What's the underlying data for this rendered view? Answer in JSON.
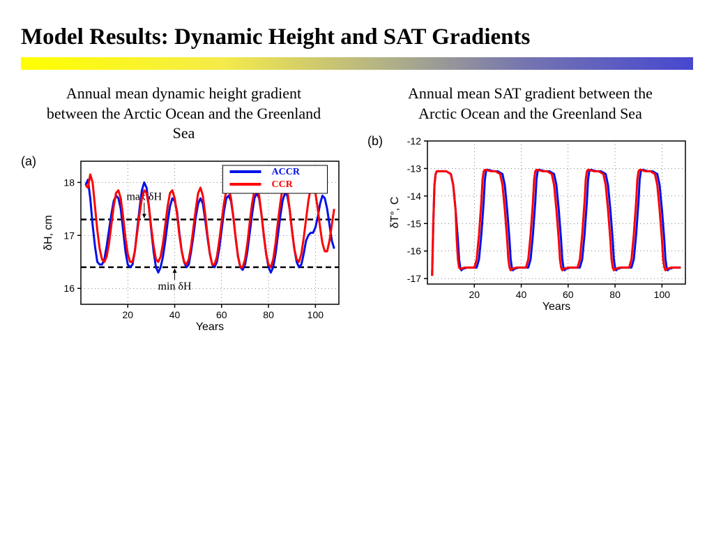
{
  "title": "Model Results: Dynamic Height and SAT Gradients",
  "gradient_bar_colors": [
    "#ffff00",
    "#4747d0"
  ],
  "panel_a": {
    "label": "(a)",
    "subtitle": "Annual mean dynamic height gradient between the Arctic Ocean and the Greenland Sea",
    "type": "line",
    "xlabel": "Years",
    "ylabel": "δH, cm",
    "xlim": [
      0,
      110
    ],
    "ylim": [
      15.7,
      18.4
    ],
    "xticks": [
      20,
      40,
      60,
      80,
      100
    ],
    "yticks": [
      16,
      17,
      18
    ],
    "ref_lines": [
      {
        "y": 17.3,
        "label": "max δH",
        "label_x": 27
      },
      {
        "y": 16.4,
        "label": "min δH",
        "label_x": 40
      }
    ],
    "legend": {
      "items": [
        {
          "label": "ACCR",
          "color": "#0010e8"
        },
        {
          "label": "CCR",
          "color": "#ff0000"
        }
      ]
    },
    "series": [
      {
        "name": "ACCR",
        "color": "#0010e8",
        "width": 3,
        "x": [
          2,
          3,
          4,
          5,
          6,
          7,
          8,
          9,
          10,
          11,
          12,
          13,
          14,
          15,
          16,
          17,
          18,
          19,
          20,
          21,
          22,
          23,
          24,
          25,
          26,
          27,
          28,
          29,
          30,
          31,
          32,
          33,
          34,
          35,
          36,
          37,
          38,
          39,
          40,
          41,
          42,
          43,
          44,
          45,
          46,
          47,
          48,
          49,
          50,
          51,
          52,
          53,
          54,
          55,
          56,
          57,
          58,
          59,
          60,
          61,
          62,
          63,
          64,
          65,
          66,
          67,
          68,
          69,
          70,
          71,
          72,
          73,
          74,
          75,
          76,
          77,
          78,
          79,
          80,
          81,
          82,
          83,
          84,
          85,
          86,
          87,
          88,
          89,
          90,
          91,
          92,
          93,
          94,
          95,
          96,
          97,
          98,
          99,
          100,
          101,
          102,
          103,
          104,
          105,
          106,
          107,
          108
        ],
        "y": [
          17.95,
          18.05,
          17.7,
          17.2,
          16.8,
          16.5,
          16.45,
          16.45,
          16.55,
          16.8,
          17.1,
          17.4,
          17.65,
          17.75,
          17.7,
          17.5,
          17.1,
          16.7,
          16.45,
          16.4,
          16.45,
          16.7,
          17.1,
          17.5,
          17.85,
          18.0,
          17.9,
          17.55,
          17.1,
          16.7,
          16.4,
          16.3,
          16.4,
          16.6,
          16.9,
          17.25,
          17.55,
          17.7,
          17.65,
          17.45,
          17.05,
          16.7,
          16.5,
          16.4,
          16.45,
          16.7,
          17.0,
          17.35,
          17.6,
          17.7,
          17.6,
          17.3,
          16.95,
          16.65,
          16.45,
          16.4,
          16.5,
          16.75,
          17.1,
          17.45,
          17.7,
          17.75,
          17.65,
          17.35,
          16.95,
          16.6,
          16.4,
          16.35,
          16.45,
          16.7,
          17.05,
          17.4,
          17.7,
          17.8,
          17.7,
          17.4,
          17.0,
          16.65,
          16.4,
          16.3,
          16.4,
          16.65,
          17.0,
          17.35,
          17.65,
          17.8,
          17.75,
          17.5,
          17.1,
          16.75,
          16.5,
          16.4,
          16.45,
          16.65,
          16.9,
          17.0,
          17.05,
          17.05,
          17.15,
          17.35,
          17.6,
          17.75,
          17.7,
          17.5,
          17.2,
          16.9,
          16.75
        ]
      },
      {
        "name": "CCR",
        "color": "#ff0000",
        "width": 3,
        "x": [
          2,
          3,
          4,
          5,
          6,
          7,
          8,
          9,
          10,
          11,
          12,
          13,
          14,
          15,
          16,
          17,
          18,
          19,
          20,
          21,
          22,
          23,
          24,
          25,
          26,
          27,
          28,
          29,
          30,
          31,
          32,
          33,
          34,
          35,
          36,
          37,
          38,
          39,
          40,
          41,
          42,
          43,
          44,
          45,
          46,
          47,
          48,
          49,
          50,
          51,
          52,
          53,
          54,
          55,
          56,
          57,
          58,
          59,
          60,
          61,
          62,
          63,
          64,
          65,
          66,
          67,
          68,
          69,
          70,
          71,
          72,
          73,
          74,
          75,
          76,
          77,
          78,
          79,
          80,
          81,
          82,
          83,
          84,
          85,
          86,
          87,
          88,
          89,
          90,
          91,
          92,
          93,
          94,
          95,
          96,
          97,
          98,
          99,
          100,
          101,
          102,
          103,
          104,
          105,
          106,
          107,
          108
        ],
        "y": [
          17.95,
          17.9,
          18.15,
          18.0,
          17.55,
          17.1,
          16.75,
          16.55,
          16.5,
          16.6,
          16.85,
          17.2,
          17.55,
          17.8,
          17.85,
          17.7,
          17.35,
          16.95,
          16.65,
          16.5,
          16.5,
          16.7,
          17.05,
          17.4,
          17.7,
          17.85,
          17.8,
          17.55,
          17.15,
          16.8,
          16.55,
          16.5,
          16.6,
          16.85,
          17.2,
          17.55,
          17.8,
          17.85,
          17.7,
          17.4,
          17.0,
          16.7,
          16.5,
          16.45,
          16.55,
          16.8,
          17.15,
          17.5,
          17.8,
          17.9,
          17.75,
          17.4,
          17.0,
          16.65,
          16.45,
          16.45,
          16.6,
          16.9,
          17.25,
          17.6,
          17.85,
          17.9,
          17.7,
          17.35,
          16.95,
          16.6,
          16.4,
          16.4,
          16.55,
          16.85,
          17.25,
          17.6,
          17.85,
          17.9,
          17.75,
          17.4,
          17.0,
          16.65,
          16.45,
          16.4,
          16.55,
          16.85,
          17.25,
          17.6,
          17.9,
          18.0,
          17.85,
          17.5,
          17.1,
          16.75,
          16.55,
          16.5,
          16.65,
          16.95,
          17.3,
          17.65,
          17.9,
          17.95,
          17.8,
          17.5,
          17.15,
          16.85,
          16.7,
          16.7,
          16.9,
          17.2,
          17.5
        ]
      }
    ],
    "label_fontsize": 16,
    "tick_fontsize": 14,
    "line_width": 3,
    "background_color": "#ffffff",
    "border_color": "#000000",
    "grid_style": "dotted"
  },
  "panel_b": {
    "label": "(b)",
    "subtitle": "Annual mean SAT gradient between the Arctic Ocean and the Greenland Sea",
    "type": "line",
    "xlabel": "Years",
    "ylabel": "δT°, C",
    "xlim": [
      0,
      110
    ],
    "ylim": [
      -17.2,
      -12
    ],
    "xticks": [
      20,
      40,
      60,
      80,
      100
    ],
    "yticks": [
      -17,
      -16,
      -15,
      -14,
      -13,
      -12
    ],
    "series": [
      {
        "name": "ACCR",
        "color": "#0010e8",
        "width": 3,
        "x": [
          2,
          2.5,
          3,
          3.5,
          4,
          6,
          8,
          10,
          11,
          12,
          13,
          13.5,
          14,
          14.5,
          15,
          17,
          19,
          21,
          22,
          23,
          24,
          24.5,
          25,
          25.5,
          26,
          28,
          30,
          32,
          33,
          34,
          35,
          35.5,
          36,
          36.5,
          37,
          39,
          41,
          43,
          44,
          45,
          46,
          46.5,
          47,
          47.5,
          48,
          50,
          52,
          54,
          55,
          56,
          57,
          57.5,
          58,
          58.5,
          59,
          61,
          63,
          65,
          66,
          67,
          68,
          68.5,
          69,
          69.5,
          70,
          72,
          74,
          76,
          77,
          78,
          79,
          79.5,
          80,
          80.5,
          81,
          83,
          85,
          87,
          88,
          89,
          90,
          90.5,
          91,
          91.5,
          92,
          94,
          96,
          98,
          99,
          100,
          101,
          101.5,
          102,
          102.5,
          103,
          105,
          107,
          108
        ],
        "y": [
          -16.9,
          -15.0,
          -13.6,
          -13.2,
          -13.1,
          -13.1,
          -13.1,
          -13.2,
          -13.6,
          -14.5,
          -15.6,
          -16.3,
          -16.6,
          -16.7,
          -16.65,
          -16.6,
          -16.6,
          -16.6,
          -16.3,
          -15.4,
          -14.2,
          -13.4,
          -13.1,
          -13.05,
          -13.05,
          -13.1,
          -13.1,
          -13.2,
          -13.6,
          -14.5,
          -15.6,
          -16.3,
          -16.6,
          -16.7,
          -16.65,
          -16.6,
          -16.6,
          -16.6,
          -16.3,
          -15.4,
          -14.2,
          -13.4,
          -13.1,
          -13.05,
          -13.05,
          -13.1,
          -13.1,
          -13.2,
          -13.6,
          -14.5,
          -15.6,
          -16.3,
          -16.6,
          -16.7,
          -16.65,
          -16.6,
          -16.6,
          -16.6,
          -16.3,
          -15.4,
          -14.2,
          -13.4,
          -13.1,
          -13.05,
          -13.05,
          -13.1,
          -13.1,
          -13.2,
          -13.6,
          -14.5,
          -15.6,
          -16.3,
          -16.6,
          -16.7,
          -16.65,
          -16.6,
          -16.6,
          -16.6,
          -16.3,
          -15.4,
          -14.2,
          -13.4,
          -13.1,
          -13.05,
          -13.05,
          -13.1,
          -13.1,
          -13.2,
          -13.6,
          -14.5,
          -15.6,
          -16.3,
          -16.6,
          -16.7,
          -16.65,
          -16.6,
          -16.6,
          -16.6
        ]
      },
      {
        "name": "CCR",
        "color": "#ff0000",
        "width": 3,
        "x": [
          2,
          2.5,
          3,
          3.5,
          4,
          6,
          8,
          10,
          11,
          12,
          12.5,
          13,
          13.5,
          14,
          16,
          18,
          20,
          21,
          22,
          23,
          23.5,
          24,
          24.5,
          25,
          27,
          29,
          31,
          32,
          33,
          34,
          34.5,
          35,
          35.5,
          36,
          38,
          40,
          42,
          43,
          44,
          45,
          45.5,
          46,
          46.5,
          47,
          49,
          51,
          53,
          54,
          55,
          56,
          56.5,
          57,
          57.5,
          58,
          60,
          62,
          64,
          65,
          66,
          67,
          67.5,
          68,
          68.5,
          69,
          71,
          73,
          75,
          76,
          77,
          78,
          78.5,
          79,
          79.5,
          80,
          82,
          84,
          86,
          87,
          88,
          89,
          89.5,
          90,
          90.5,
          91,
          93,
          95,
          97,
          98,
          99,
          100,
          100.5,
          101,
          101.5,
          102,
          104,
          106,
          108
        ],
        "y": [
          -16.9,
          -15.0,
          -13.6,
          -13.2,
          -13.1,
          -13.1,
          -13.1,
          -13.2,
          -13.6,
          -14.5,
          -15.6,
          -16.3,
          -16.6,
          -16.65,
          -16.6,
          -16.6,
          -16.6,
          -16.3,
          -15.4,
          -14.2,
          -13.4,
          -13.1,
          -13.05,
          -13.05,
          -13.1,
          -13.1,
          -13.2,
          -13.6,
          -14.5,
          -15.6,
          -16.3,
          -16.6,
          -16.7,
          -16.65,
          -16.6,
          -16.6,
          -16.6,
          -16.3,
          -15.4,
          -14.2,
          -13.4,
          -13.1,
          -13.05,
          -13.05,
          -13.1,
          -13.1,
          -13.2,
          -13.6,
          -14.5,
          -15.6,
          -16.3,
          -16.6,
          -16.7,
          -16.65,
          -16.6,
          -16.6,
          -16.6,
          -16.3,
          -15.4,
          -14.2,
          -13.4,
          -13.1,
          -13.05,
          -13.05,
          -13.1,
          -13.1,
          -13.2,
          -13.6,
          -14.5,
          -15.6,
          -16.3,
          -16.6,
          -16.7,
          -16.65,
          -16.6,
          -16.6,
          -16.6,
          -16.3,
          -15.4,
          -14.2,
          -13.4,
          -13.1,
          -13.05,
          -13.05,
          -13.1,
          -13.1,
          -13.2,
          -13.6,
          -14.5,
          -15.6,
          -16.3,
          -16.6,
          -16.7,
          -16.65,
          -16.6,
          -16.6,
          -16.6
        ]
      }
    ],
    "label_fontsize": 16,
    "tick_fontsize": 14,
    "line_width": 3,
    "background_color": "#ffffff",
    "border_color": "#000000",
    "grid_style": "dotted"
  }
}
